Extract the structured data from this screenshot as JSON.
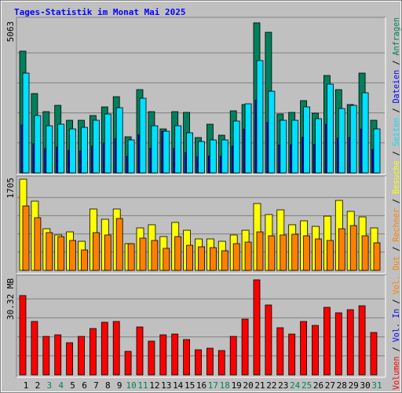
{
  "chart_data": [
    {
      "type": "bar",
      "title": "Tages-Statistik im Monat Mai 2025",
      "categories": [
        "1",
        "2",
        "3",
        "4",
        "5",
        "6",
        "7",
        "8",
        "9",
        "10",
        "11",
        "12",
        "13",
        "14",
        "15",
        "16",
        "17",
        "18",
        "19",
        "20",
        "21",
        "22",
        "23",
        "24",
        "25",
        "26",
        "27",
        "28",
        "29",
        "30",
        "31"
      ],
      "category_colors": [
        "#000000",
        "#000000",
        "#00805c",
        "#00805c",
        "#000000",
        "#000000",
        "#000000",
        "#000000",
        "#000000",
        "#00805c",
        "#00805c",
        "#000000",
        "#000000",
        "#000000",
        "#000000",
        "#000000",
        "#00805c",
        "#00805c",
        "#000000",
        "#000000",
        "#000000",
        "#000000",
        "#000000",
        "#00805c",
        "#00805c",
        "#000000",
        "#000000",
        "#000000",
        "#000000",
        "#000000",
        "#00805c"
      ],
      "series": [
        {
          "name": "Anfragen",
          "color": "#00805c",
          "values": [
            4108,
            2677,
            2067,
            2279,
            1776,
            1776,
            1935,
            2226,
            2571,
            1219,
            2809,
            2067,
            1484,
            2067,
            2041,
            1193,
            1643,
            1272,
            2094,
            2306,
            5063,
            4744,
            1988,
            2041,
            2438,
            2014,
            3286,
            2809,
            2306,
            3366,
            1776
          ]
        },
        {
          "name": "Dateien",
          "color": "#0000ff",
          "values": [
            1620,
            980,
            820,
            870,
            760,
            740,
            900,
            1010,
            1150,
            560,
            1290,
            830,
            1400,
            830,
            690,
            540,
            570,
            560,
            900,
            1480,
            2460,
            1700,
            940,
            950,
            1200,
            960,
            1640,
            1170,
            1200,
            1480,
            790
          ]
        },
        {
          "name": "Seiten",
          "color": "#00e0ff",
          "values": [
            3366,
            1935,
            1590,
            1643,
            1484,
            1537,
            1776,
            1988,
            2200,
            1113,
            2518,
            1590,
            1405,
            1590,
            1352,
            1060,
            1113,
            1113,
            1749,
            2332,
            3790,
            2756,
            1776,
            1776,
            2226,
            1829,
            2995,
            2173,
            2279,
            2703,
            1484
          ]
        }
      ],
      "ylim": [
        0,
        5063
      ],
      "yticks": [
        5063
      ],
      "grid": true
    },
    {
      "type": "bar",
      "series": [
        {
          "name": "Besuche",
          "color": "#ffff00",
          "values": [
            1705,
            1294,
            779,
            662,
            720,
            544,
            1147,
            956,
            1147,
            500,
            794,
            853,
            632,
            897,
            750,
            588,
            588,
            544,
            662,
            750,
            1250,
            1044,
            1132,
            853,
            926,
            823,
            1014,
            1308,
            1103,
            1000,
            794
          ]
        },
        {
          "name": "Rechner",
          "color": "#ff8000",
          "values": [
            1205,
            985,
            706,
            632,
            559,
            382,
            706,
            662,
            970,
            500,
            603,
            559,
            412,
            632,
            470,
            441,
            426,
            368,
            500,
            529,
            720,
            647,
            662,
            676,
            647,
            588,
            559,
            779,
            838,
            647,
            515
          ]
        }
      ],
      "ylim": [
        0,
        1705
      ],
      "yticks": [
        1705
      ],
      "grid": true
    },
    {
      "type": "bar",
      "series": [
        {
          "name": "Volumen",
          "color": "#ff0000",
          "values": [
            25.31,
            17.04,
            12.28,
            12.78,
            10.27,
            12.28,
            14.79,
            16.79,
            17.04,
            7.52,
            15.29,
            10.78,
            12.78,
            13.03,
            11.28,
            8.02,
            8.52,
            7.77,
            12.28,
            17.79,
            30.32,
            22.3,
            15.04,
            13.03,
            17.04,
            15.79,
            21.55,
            19.8,
            20.8,
            22.05,
            13.53
          ]
        }
      ],
      "legend_extra": [
        {
          "name": "Vol. In",
          "color": "#0000ff"
        },
        {
          "name": "Vol. Out",
          "color": "#ff8000"
        }
      ],
      "ylim": [
        0,
        30.32
      ],
      "yticks": [
        {
          "value": 30.32,
          "label": "30.32 MB"
        }
      ],
      "grid": true
    }
  ],
  "legend_separator": " / "
}
